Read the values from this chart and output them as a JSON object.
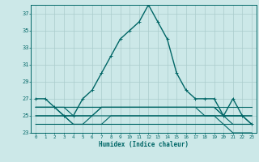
{
  "xlabel": "Humidex (Indice chaleur)",
  "xlim": [
    -0.5,
    23.5
  ],
  "ylim": [
    23,
    38
  ],
  "yticks": [
    23,
    25,
    27,
    29,
    31,
    33,
    35,
    37
  ],
  "xticks": [
    0,
    1,
    2,
    3,
    4,
    5,
    6,
    7,
    8,
    9,
    10,
    11,
    12,
    13,
    14,
    15,
    16,
    17,
    18,
    19,
    20,
    21,
    22,
    23
  ],
  "bg_color": "#cce8e8",
  "grid_color": "#aacccc",
  "line_color": "#006666",
  "lines": [
    {
      "x": [
        0,
        1,
        2,
        3,
        4,
        5,
        6,
        7,
        8,
        9,
        10,
        11,
        12,
        13,
        14,
        15,
        16,
        17,
        18,
        19,
        20,
        21,
        22,
        23
      ],
      "y": [
        27,
        27,
        26,
        25,
        25,
        27,
        28,
        30,
        32,
        34,
        35,
        36,
        38,
        36,
        34,
        30,
        28,
        27,
        27,
        27,
        25,
        27,
        25,
        24
      ],
      "marker": "+",
      "lw": 1.0
    },
    {
      "x": [
        0,
        1,
        2,
        3,
        4,
        5,
        6,
        7,
        8,
        9,
        10,
        11,
        12,
        13,
        14,
        15,
        16,
        17,
        18,
        19,
        20,
        21,
        22,
        23
      ],
      "y": [
        26,
        26,
        26,
        26,
        26,
        26,
        26,
        26,
        26,
        26,
        26,
        26,
        26,
        26,
        26,
        26,
        26,
        26,
        26,
        26,
        25,
        25,
        25,
        25
      ],
      "marker": null,
      "lw": 0.8
    },
    {
      "x": [
        0,
        1,
        2,
        3,
        4,
        5,
        6,
        7,
        8,
        9,
        10,
        11,
        12,
        13,
        14,
        15,
        16,
        17,
        18,
        19,
        20,
        21,
        22,
        23
      ],
      "y": [
        26,
        26,
        26,
        26,
        26,
        26,
        26,
        26,
        26,
        26,
        26,
        26,
        26,
        26,
        26,
        26,
        26,
        26,
        26,
        26,
        26,
        26,
        26,
        26
      ],
      "marker": null,
      "lw": 0.8
    },
    {
      "x": [
        0,
        1,
        2,
        3,
        4,
        5,
        6,
        7,
        8,
        9,
        10,
        11,
        12,
        13,
        14,
        15,
        16,
        17,
        18,
        19,
        20,
        21,
        22,
        23
      ],
      "y": [
        26,
        26,
        26,
        26,
        25,
        25,
        25,
        26,
        26,
        26,
        26,
        26,
        26,
        26,
        26,
        26,
        26,
        26,
        26,
        26,
        25,
        25,
        25,
        25
      ],
      "marker": null,
      "lw": 0.8
    },
    {
      "x": [
        0,
        1,
        2,
        3,
        4,
        5,
        6,
        7,
        8,
        9,
        10,
        11,
        12,
        13,
        14,
        15,
        16,
        17,
        18,
        19,
        20,
        21,
        22,
        23
      ],
      "y": [
        26,
        26,
        26,
        25,
        25,
        25,
        25,
        26,
        26,
        26,
        26,
        26,
        26,
        26,
        26,
        26,
        26,
        26,
        25,
        25,
        25,
        25,
        25,
        24
      ],
      "marker": null,
      "lw": 0.8
    },
    {
      "x": [
        0,
        1,
        2,
        3,
        4,
        5,
        6,
        7,
        8,
        9,
        10,
        11,
        12,
        13,
        14,
        15,
        16,
        17,
        18,
        19,
        20,
        21,
        22,
        23
      ],
      "y": [
        25,
        25,
        25,
        25,
        24,
        24,
        25,
        25,
        25,
        25,
        25,
        25,
        25,
        25,
        25,
        25,
        25,
        25,
        25,
        25,
        25,
        24,
        24,
        24
      ],
      "marker": null,
      "lw": 0.8
    },
    {
      "x": [
        0,
        1,
        2,
        3,
        4,
        5,
        6,
        7,
        8,
        9,
        10,
        11,
        12,
        13,
        14,
        15,
        16,
        17,
        18,
        19,
        20,
        21,
        22,
        23
      ],
      "y": [
        25,
        25,
        25,
        25,
        24,
        24,
        24,
        24,
        25,
        25,
        25,
        25,
        25,
        25,
        25,
        25,
        25,
        25,
        25,
        25,
        24,
        24,
        24,
        24
      ],
      "marker": null,
      "lw": 0.8
    },
    {
      "x": [
        0,
        1,
        2,
        3,
        4,
        5,
        6,
        7,
        8,
        9,
        10,
        11,
        12,
        13,
        14,
        15,
        16,
        17,
        18,
        19,
        20,
        21,
        22,
        23
      ],
      "y": [
        24,
        24,
        24,
        24,
        24,
        24,
        24,
        24,
        24,
        24,
        24,
        24,
        24,
        24,
        24,
        24,
        24,
        24,
        24,
        24,
        24,
        23,
        23,
        23
      ],
      "marker": null,
      "lw": 0.8
    }
  ]
}
